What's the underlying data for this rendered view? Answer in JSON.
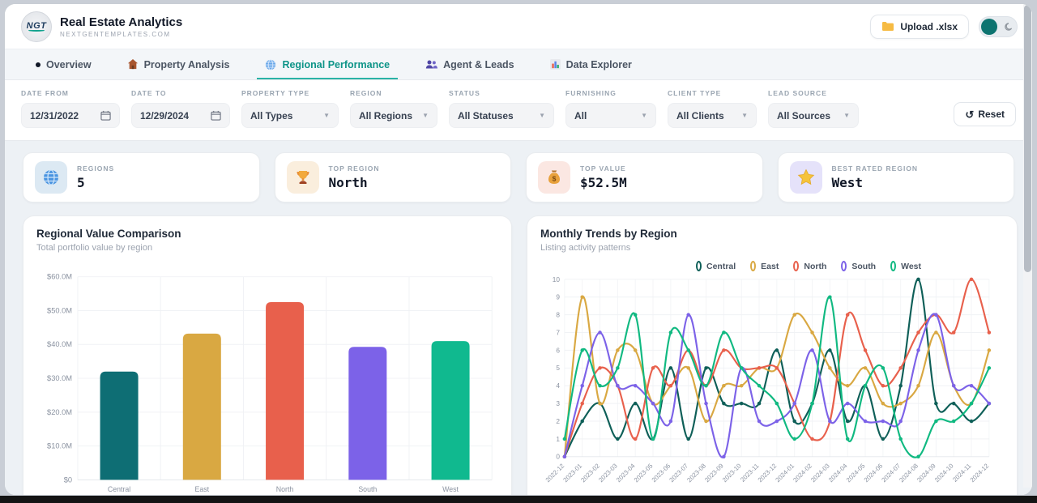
{
  "header": {
    "logo_text": "NGT",
    "title": "Real Estate Analytics",
    "subtitle": "NEXTGENTEMPLATES.COM",
    "upload_label": "Upload .xlsx"
  },
  "tabs": [
    {
      "label": "Overview",
      "active": false
    },
    {
      "label": "Property Analysis",
      "active": false
    },
    {
      "label": "Regional Performance",
      "active": true
    },
    {
      "label": "Agent & Leads",
      "active": false
    },
    {
      "label": "Data Explorer",
      "active": false
    }
  ],
  "filters": {
    "date_from": {
      "label": "DATE FROM",
      "value": "12/31/2022"
    },
    "date_to": {
      "label": "DATE TO",
      "value": "12/29/2024"
    },
    "property_type": {
      "label": "PROPERTY TYPE",
      "value": "All Types"
    },
    "region": {
      "label": "REGION",
      "value": "All Regions"
    },
    "status": {
      "label": "STATUS",
      "value": "All Statuses"
    },
    "furnishing": {
      "label": "FURNISHING",
      "value": "All"
    },
    "client_type": {
      "label": "CLIENT TYPE",
      "value": "All Clients"
    },
    "lead_source": {
      "label": "LEAD SOURCE",
      "value": "All Sources"
    },
    "reset_label": "Reset",
    "reset_icon": "↺"
  },
  "kpis": [
    {
      "label": "REGIONS",
      "value": "5",
      "icon": "globe-icon",
      "icon_bg": "#dce9f3"
    },
    {
      "label": "TOP REGION",
      "value": "North",
      "icon": "trophy-icon",
      "icon_bg": "#faeedd"
    },
    {
      "label": "TOP VALUE",
      "value": "$52.5M",
      "icon": "moneybag-icon",
      "icon_bg": "#fbe7e2"
    },
    {
      "label": "BEST RATED REGION",
      "value": "West",
      "icon": "star-icon",
      "icon_bg": "#e5e2fa"
    }
  ],
  "chart_data": [
    {
      "type": "bar",
      "title": "Regional Value Comparison",
      "subtitle": "Total portfolio value by region",
      "categories": [
        "Central",
        "East",
        "North",
        "South",
        "West"
      ],
      "values": [
        32,
        43.2,
        52.5,
        39.3,
        41
      ],
      "colors": [
        "#0e6e74",
        "#d9a842",
        "#e8604c",
        "#7c62e8",
        "#10b98f"
      ],
      "ylim": [
        0,
        60
      ],
      "y_tick_values": [
        0,
        10,
        20,
        30,
        40,
        50,
        60
      ],
      "y_tick_labels": [
        "$0",
        "$10.0M",
        "$20.0M",
        "$30.0M",
        "$40.0M",
        "$50.0M",
        "$60.0M"
      ],
      "grid": true
    },
    {
      "type": "line",
      "title": "Monthly Trends by Region",
      "subtitle": "Listing activity patterns",
      "legend_position": "top",
      "x": [
        "2022-12",
        "2023-01",
        "2023-02",
        "2023-03",
        "2023-04",
        "2023-05",
        "2023-06",
        "2023-07",
        "2023-08",
        "2023-09",
        "2023-10",
        "2023-11",
        "2023-12",
        "2024-01",
        "2024-02",
        "2024-03",
        "2024-04",
        "2024-05",
        "2024-06",
        "2024-07",
        "2024-08",
        "2024-09",
        "2024-10",
        "2024-11",
        "2024-12"
      ],
      "ylim": [
        0,
        10
      ],
      "y_tick_values": [
        0,
        1,
        2,
        3,
        4,
        5,
        6,
        7,
        8,
        9,
        10
      ],
      "grid": true,
      "series": [
        {
          "name": "Central",
          "color": "#0e5f58",
          "values": [
            0,
            2,
            3,
            1,
            3,
            1,
            5,
            1,
            5,
            3,
            3,
            3,
            6,
            2,
            3,
            6,
            2,
            4,
            1,
            4,
            10,
            3,
            3,
            2,
            3
          ]
        },
        {
          "name": "East",
          "color": "#d9a842",
          "values": [
            0,
            9,
            3,
            6,
            6,
            3,
            4,
            5,
            2,
            4,
            4,
            5,
            5,
            8,
            7,
            5,
            4,
            5,
            3,
            3,
            4,
            7,
            4,
            3,
            6
          ]
        },
        {
          "name": "North",
          "color": "#e8604c",
          "values": [
            0,
            3,
            5,
            4,
            1,
            5,
            4,
            6,
            4,
            6,
            5,
            5,
            5,
            3,
            1,
            2,
            8,
            6,
            4,
            5,
            7,
            8,
            7,
            10,
            7
          ]
        },
        {
          "name": "South",
          "color": "#7c62e8",
          "values": [
            0,
            4,
            7,
            4,
            4,
            3,
            2,
            8,
            3,
            0,
            5,
            2,
            2,
            3,
            6,
            2,
            3,
            2,
            2,
            2,
            6,
            8,
            4,
            4,
            3
          ]
        },
        {
          "name": "West",
          "color": "#10b981",
          "values": [
            1,
            6,
            4,
            5,
            8,
            1,
            7,
            6,
            4,
            7,
            5,
            4,
            3,
            1,
            3,
            9,
            1,
            4,
            5,
            1,
            0,
            2,
            2,
            3,
            5
          ]
        }
      ]
    }
  ]
}
